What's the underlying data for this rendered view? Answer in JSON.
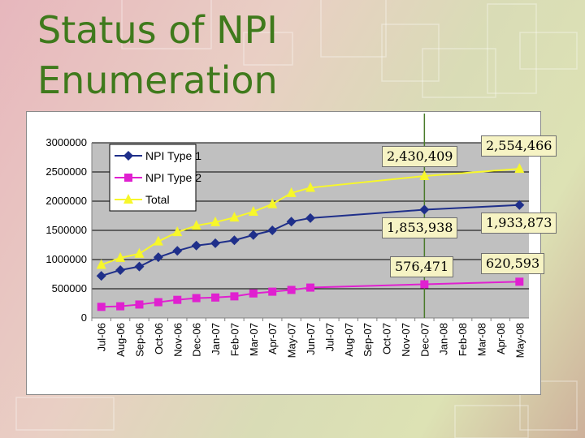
{
  "slide": {
    "title_line1": "Status of NPI",
    "title_line2": "Enumeration"
  },
  "chart_data": {
    "type": "line",
    "categories": [
      "Jul-06",
      "Aug-06",
      "Sep-06",
      "Oct-06",
      "Nov-06",
      "Dec-06",
      "Jan-07",
      "Feb-07",
      "Mar-07",
      "Apr-07",
      "May-07",
      "Jun-07",
      "Jul-07",
      "Aug-07",
      "Sep-07",
      "Oct-07",
      "Nov-07",
      "Dec-07",
      "Jan-08",
      "Feb-08",
      "Mar-08",
      "Apr-08",
      "May-08"
    ],
    "ylim": [
      0,
      3000000
    ],
    "yticks": [
      "0",
      "500000",
      "1000000",
      "1500000",
      "2000000",
      "2500000",
      "3000000"
    ],
    "grid": true,
    "legend_position": "top-left",
    "series": [
      {
        "name": "NPI Type 1",
        "color": "#1f2f8a",
        "marker": "diamond",
        "points": [
          [
            0,
            720000
          ],
          [
            1,
            820000
          ],
          [
            2,
            880000
          ],
          [
            3,
            1040000
          ],
          [
            4,
            1150000
          ],
          [
            5,
            1240000
          ],
          [
            6,
            1280000
          ],
          [
            7,
            1330000
          ],
          [
            8,
            1420000
          ],
          [
            9,
            1500000
          ],
          [
            10,
            1650000
          ],
          [
            11,
            1710000
          ],
          [
            17,
            1853938
          ],
          [
            22,
            1933873
          ]
        ]
      },
      {
        "name": "NPI Type 2",
        "color": "#e020d0",
        "marker": "square",
        "points": [
          [
            0,
            190000
          ],
          [
            1,
            200000
          ],
          [
            2,
            230000
          ],
          [
            3,
            270000
          ],
          [
            4,
            310000
          ],
          [
            5,
            340000
          ],
          [
            6,
            350000
          ],
          [
            7,
            370000
          ],
          [
            8,
            420000
          ],
          [
            9,
            450000
          ],
          [
            10,
            480000
          ],
          [
            11,
            520000
          ],
          [
            17,
            576471
          ],
          [
            22,
            620593
          ]
        ]
      },
      {
        "name": "Total",
        "color": "#f7f72a",
        "marker": "triangle",
        "points": [
          [
            0,
            910000
          ],
          [
            1,
            1030000
          ],
          [
            2,
            1100000
          ],
          [
            3,
            1310000
          ],
          [
            4,
            1470000
          ],
          [
            5,
            1580000
          ],
          [
            6,
            1640000
          ],
          [
            7,
            1720000
          ],
          [
            8,
            1820000
          ],
          [
            9,
            1950000
          ],
          [
            10,
            2140000
          ],
          [
            11,
            2230000
          ],
          [
            17,
            2430409
          ],
          [
            22,
            2554466
          ]
        ]
      }
    ],
    "annotations": [
      {
        "text": "2,430,409",
        "point": "total-dec-07"
      },
      {
        "text": "2,554,466",
        "point": "total-may-08"
      },
      {
        "text": "1,853,938",
        "point": "type1-dec-07"
      },
      {
        "text": "1,933,873",
        "point": "type1-may-08"
      },
      {
        "text": "576,471",
        "point": "type2-dec-07"
      },
      {
        "text": "620,593",
        "point": "type2-may-08"
      }
    ],
    "marker_line_category": "Dec-07"
  }
}
